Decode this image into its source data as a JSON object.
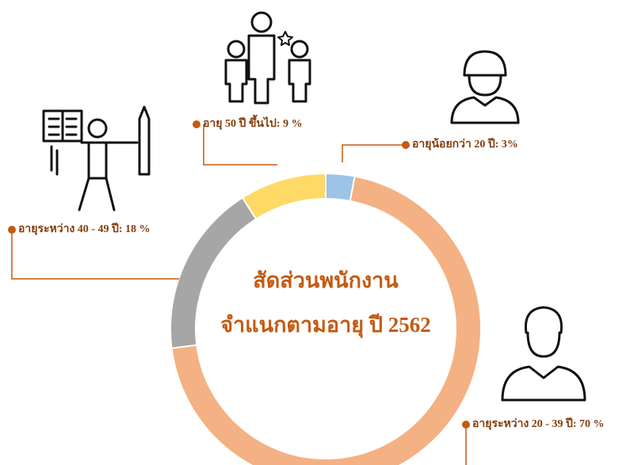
{
  "chart_data": {
    "type": "donut",
    "title": "สัดส่วนพนักงาน",
    "subtitle": "จำแนกตามอายุ ปี 2562",
    "values": [
      3,
      70,
      18,
      9
    ],
    "value_labels": [
      "อายุน้อยกว่า 20 ปี: 3%",
      "อายุระหว่าง 20 - 39 ปี: 70 %",
      "อายุระหว่าง 40 - 49 ปี: 18 %",
      "อายุ 50 ปี ขึ้นไป: 9 %"
    ],
    "colors": [
      "#9dc3e6",
      "#f4b183",
      "#a6a6a6",
      "#ffd966"
    ]
  }
}
